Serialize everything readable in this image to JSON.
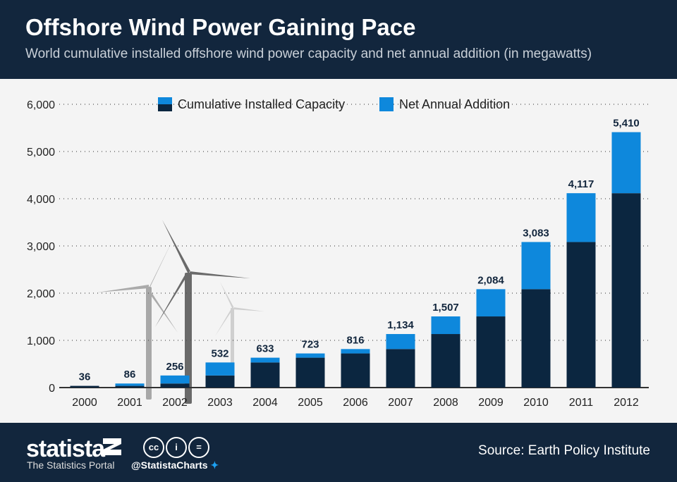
{
  "header": {
    "title": "Offshore Wind Power Gaining Pace",
    "subtitle": "World cumulative installed offshore wind power capacity and net annual addition (in megawatts)"
  },
  "footer": {
    "logo": "statista",
    "tagline": "The Statistics Portal",
    "handle": "@StatistaCharts",
    "source": "Source: Earth Policy Institute",
    "license_icons": [
      "cc-icon",
      "by-icon",
      "nd-icon"
    ]
  },
  "colors": {
    "cumulative": "#0b2640",
    "addition": "#0e88dc",
    "background": "#f4f4f4",
    "header": "#12263d"
  },
  "chart_data": {
    "type": "bar",
    "stacked": true,
    "categories": [
      "2000",
      "2001",
      "2002",
      "2003",
      "2004",
      "2005",
      "2006",
      "2007",
      "2008",
      "2009",
      "2010",
      "2011",
      "2012"
    ],
    "series": [
      {
        "name": "Cumulative Installed Capacity",
        "values": [
          36,
          36,
          86,
          256,
          532,
          633,
          723,
          816,
          1134,
          1507,
          2084,
          3083,
          4117
        ]
      },
      {
        "name": "Net Annual Addition",
        "values": [
          0,
          50,
          170,
          276,
          101,
          90,
          93,
          318,
          373,
          577,
          999,
          1034,
          1293
        ]
      }
    ],
    "totals": [
      36,
      86,
      256,
      532,
      633,
      723,
      816,
      1134,
      1507,
      2084,
      3083,
      4117,
      5410
    ],
    "total_labels": [
      "36",
      "86",
      "256",
      "532",
      "633",
      "723",
      "816",
      "1,134",
      "1,507",
      "2,084",
      "3,083",
      "4,117",
      "5,410"
    ],
    "ylim": [
      0,
      6000
    ],
    "yticks": [
      "0",
      "1,000",
      "2,000",
      "3,000",
      "4,000",
      "5,000",
      "6,000"
    ],
    "grid": true,
    "legend": "top"
  }
}
